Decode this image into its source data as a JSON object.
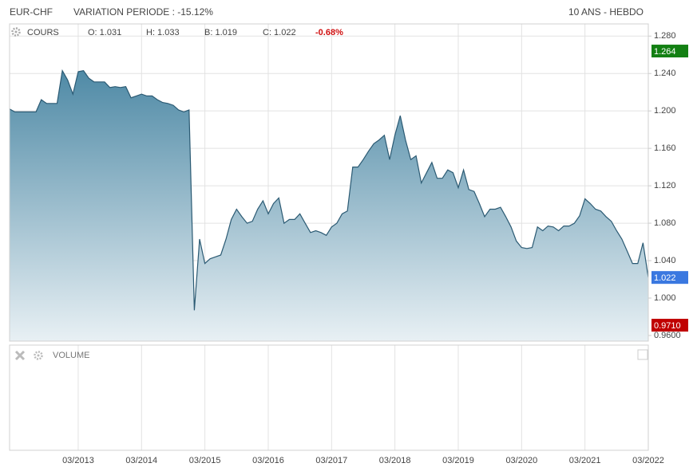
{
  "chart_data": {
    "type": "area",
    "symbol": "EUR-CHF",
    "subtitle": "VARIATION PERIODE : -15.12%",
    "period": "10 ANS - HEBDO",
    "ohlc_labels": [
      "O: 1.031",
      "H: 1.033",
      "B: 1.019",
      "C: 1.022"
    ],
    "change": "-0.68%",
    "volume_label": "VOLUME",
    "x": [
      "02/2012",
      "03/2012",
      "04/2012",
      "05/2012",
      "06/2012",
      "07/2012",
      "08/2012",
      "09/2012",
      "10/2012",
      "11/2012",
      "12/2012",
      "01/2013",
      "02/2013",
      "03/2013",
      "04/2013",
      "05/2013",
      "06/2013",
      "07/2013",
      "08/2013",
      "09/2013",
      "10/2013",
      "11/2013",
      "12/2013",
      "01/2014",
      "02/2014",
      "03/2014",
      "04/2014",
      "05/2014",
      "06/2014",
      "07/2014",
      "08/2014",
      "09/2014",
      "10/2014",
      "11/2014",
      "12/2014",
      "01/2015",
      "02/2015",
      "03/2015",
      "04/2015",
      "05/2015",
      "06/2015",
      "07/2015",
      "08/2015",
      "09/2015",
      "10/2015",
      "11/2015",
      "12/2015",
      "01/2016",
      "02/2016",
      "03/2016",
      "04/2016",
      "05/2016",
      "06/2016",
      "07/2016",
      "08/2016",
      "09/2016",
      "10/2016",
      "11/2016",
      "12/2016",
      "01/2017",
      "02/2017",
      "03/2017",
      "04/2017",
      "05/2017",
      "06/2017",
      "07/2017",
      "08/2017",
      "09/2017",
      "10/2017",
      "11/2017",
      "12/2017",
      "01/2018",
      "02/2018",
      "03/2018",
      "04/2018",
      "05/2018",
      "06/2018",
      "07/2018",
      "08/2018",
      "09/2018",
      "10/2018",
      "11/2018",
      "12/2018",
      "01/2019",
      "02/2019",
      "03/2019",
      "04/2019",
      "05/2019",
      "06/2019",
      "07/2019",
      "08/2019",
      "09/2019",
      "10/2019",
      "11/2019",
      "12/2019",
      "01/2020",
      "02/2020",
      "03/2020",
      "04/2020",
      "05/2020",
      "06/2020",
      "07/2020",
      "08/2020",
      "09/2020",
      "10/2020",
      "11/2020",
      "12/2020",
      "01/2021",
      "02/2021",
      "03/2021",
      "04/2021",
      "05/2021",
      "06/2021",
      "07/2021",
      "08/2021",
      "09/2021",
      "10/2021",
      "11/2021",
      "12/2021",
      "01/2022",
      "02/2022",
      "03/2022"
    ],
    "series": [
      {
        "name": "COURS",
        "color": "#2b5a73",
        "values": [
          1.202,
          1.199,
          1.199,
          1.199,
          1.199,
          1.199,
          1.212,
          1.208,
          1.208,
          1.208,
          1.243,
          1.233,
          1.218,
          1.242,
          1.243,
          1.235,
          1.231,
          1.231,
          1.231,
          1.225,
          1.226,
          1.225,
          1.226,
          1.214,
          1.216,
          1.218,
          1.216,
          1.216,
          1.212,
          1.209,
          1.208,
          1.206,
          1.201,
          1.199,
          1.201,
          0.987,
          1.063,
          1.037,
          1.042,
          1.044,
          1.046,
          1.063,
          1.084,
          1.095,
          1.087,
          1.08,
          1.082,
          1.095,
          1.104,
          1.09,
          1.101,
          1.107,
          1.08,
          1.084,
          1.084,
          1.09,
          1.08,
          1.07,
          1.072,
          1.07,
          1.067,
          1.076,
          1.08,
          1.09,
          1.093,
          1.14,
          1.14,
          1.148,
          1.157,
          1.165,
          1.169,
          1.174,
          1.148,
          1.174,
          1.195,
          1.169,
          1.148,
          1.152,
          1.123,
          1.134,
          1.145,
          1.128,
          1.128,
          1.137,
          1.134,
          1.118,
          1.137,
          1.116,
          1.114,
          1.101,
          1.087,
          1.095,
          1.095,
          1.097,
          1.087,
          1.076,
          1.061,
          1.054,
          1.053,
          1.054,
          1.076,
          1.072,
          1.077,
          1.076,
          1.072,
          1.077,
          1.077,
          1.08,
          1.088,
          1.106,
          1.101,
          1.095,
          1.093,
          1.087,
          1.082,
          1.072,
          1.063,
          1.05,
          1.037,
          1.037,
          1.059,
          1.022
        ]
      }
    ],
    "xlim": [
      "02/2012",
      "03/2022"
    ],
    "xticks": [
      "03/2013",
      "03/2014",
      "03/2015",
      "03/2016",
      "03/2017",
      "03/2018",
      "03/2019",
      "03/2020",
      "03/2021",
      "03/2022"
    ],
    "ylim": [
      0.954,
      1.293
    ],
    "yticks": [
      {
        "value": 0.96,
        "label": "0.9600"
      },
      {
        "value": 1.0,
        "label": "1.000"
      },
      {
        "value": 1.04,
        "label": "1.040"
      },
      {
        "value": 1.08,
        "label": "1.080"
      },
      {
        "value": 1.12,
        "label": "1.120"
      },
      {
        "value": 1.16,
        "label": "1.160"
      },
      {
        "value": 1.2,
        "label": "1.200"
      },
      {
        "value": 1.24,
        "label": "1.240"
      },
      {
        "value": 1.28,
        "label": "1.280"
      }
    ],
    "price_tags": [
      {
        "value": 1.264,
        "label": "1.264",
        "color": "#138013"
      },
      {
        "value": 1.022,
        "label": "1.022",
        "color": "#3a78e0"
      },
      {
        "value": 0.971,
        "label": "0.9710",
        "color": "#c00000"
      }
    ],
    "grid": true
  }
}
